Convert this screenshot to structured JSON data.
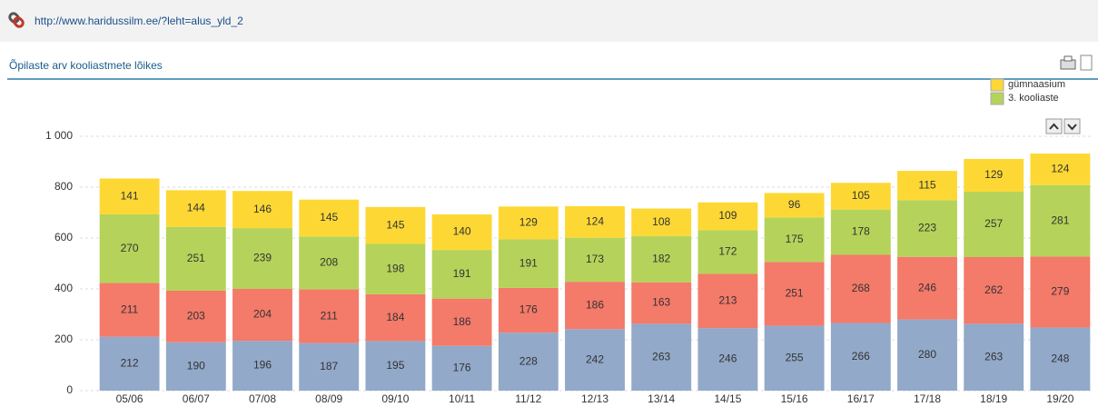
{
  "header": {
    "url": "http://www.haridussilm.ee/?leht=alus_yld_2"
  },
  "chart_data": {
    "type": "stacked_bar",
    "title": "Õpilaste arv kooliastmete lõikes",
    "categories": [
      "05/06",
      "06/07",
      "07/08",
      "08/09",
      "09/10",
      "10/11",
      "11/12",
      "12/13",
      "13/14",
      "14/15",
      "15/16",
      "16/17",
      "17/18",
      "18/19",
      "19/20"
    ],
    "series": [
      {
        "name": null,
        "color": "#92a9c9",
        "values": [
          212,
          190,
          196,
          187,
          195,
          176,
          228,
          242,
          263,
          246,
          255,
          266,
          280,
          263,
          248
        ]
      },
      {
        "name": null,
        "color": "#f47a6a",
        "values": [
          211,
          203,
          204,
          211,
          184,
          186,
          176,
          186,
          163,
          213,
          251,
          268,
          246,
          262,
          279
        ]
      },
      {
        "name": "3. kooliaste",
        "color": "#b5d35a",
        "values": [
          270,
          251,
          239,
          208,
          198,
          191,
          191,
          173,
          182,
          172,
          175,
          178,
          223,
          257,
          281
        ]
      },
      {
        "name": "gümnaasium",
        "color": "#fdd835",
        "values": [
          141,
          144,
          146,
          145,
          145,
          140,
          129,
          124,
          108,
          109,
          96,
          105,
          115,
          129,
          124
        ]
      }
    ],
    "ylim": [
      0,
      1000
    ],
    "yticks": [
      0,
      200,
      400,
      600,
      800,
      {
        "value": 1000,
        "label": "1 000"
      }
    ],
    "grid": true,
    "legend": "top-right"
  }
}
